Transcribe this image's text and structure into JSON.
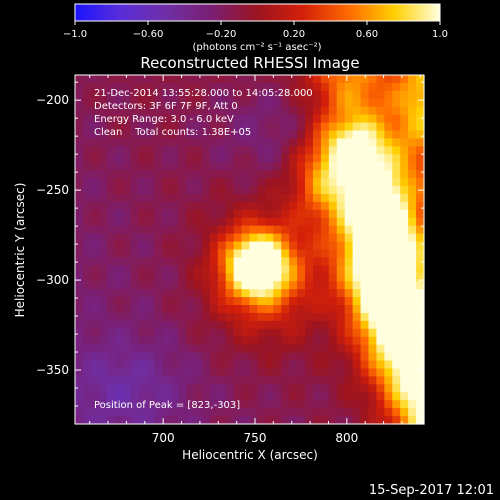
{
  "colorbar": {
    "ticks": [
      "-1.0",
      "-0.60",
      "-0.20",
      "0.20",
      "0.60",
      "1.0"
    ],
    "tick_values": [
      -1.0,
      -0.6,
      -0.2,
      0.2,
      0.6,
      1.0
    ],
    "range": [
      -1.0,
      1.0
    ],
    "unit_label": "(photons cm⁻² s⁻¹ asec⁻²)",
    "colormap": [
      "#1a14ff",
      "#5a2dd8",
      "#6f2fa6",
      "#7a1f72",
      "#9b1420",
      "#d4200a",
      "#ff6a00",
      "#ffd000",
      "#ffffe0"
    ]
  },
  "chart_data": {
    "type": "heatmap",
    "title": "Reconstructed RHESSI Image",
    "xlabel": "Heliocentric X (arcsec)",
    "ylabel": "Heliocentric Y (arcsec)",
    "xlim": [
      652,
      842
    ],
    "ylim": [
      -380,
      -186
    ],
    "x_ticks": [
      "700",
      "750",
      "800"
    ],
    "x_tick_values": [
      700,
      750,
      800
    ],
    "y_ticks": [
      "-200",
      "-250",
      "-300",
      "-350"
    ],
    "y_tick_values": [
      -200,
      -250,
      -300,
      -350
    ],
    "sources": [
      {
        "x": 751,
        "y": -292,
        "amplitude": 0.95,
        "shape": "compact loop-top source"
      },
      {
        "x": 823,
        "y": -303,
        "amplitude": 1.0,
        "shape": "extended source along right edge"
      }
    ],
    "annotations": [
      "21-Dec-2014 13:55:28.000 to 14:05:28.000",
      "Detectors: 3F 6F 7F 9F, Att 0",
      "Energy Range: 3.0 - 6.0 keV",
      "Clean    Total counts: 1.38E+05"
    ],
    "peak_label": "Position of Peak = [823,-303]",
    "peak": [
      823,
      -303
    ]
  },
  "footer": {
    "timestamp": "15-Sep-2017 12:01"
  }
}
